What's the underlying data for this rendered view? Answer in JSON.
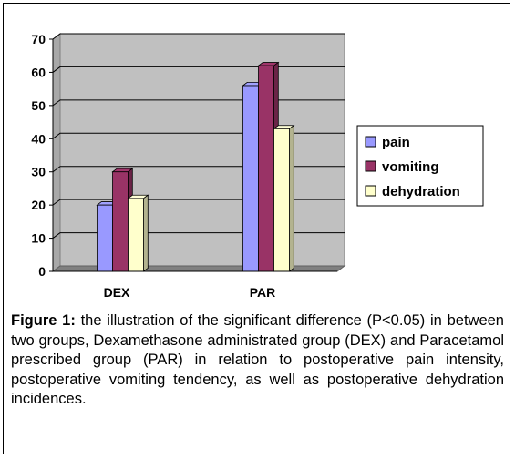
{
  "chart_data": {
    "type": "bar",
    "three_d": true,
    "categories": [
      "DEX",
      "PAR"
    ],
    "series": [
      {
        "name": "pain",
        "values": [
          20,
          56
        ],
        "color": "#9999FF"
      },
      {
        "name": "vomiting",
        "values": [
          30,
          62
        ],
        "color": "#993366"
      },
      {
        "name": "dehydration",
        "values": [
          22,
          43
        ],
        "color": "#FFFFCC"
      }
    ],
    "ylim": [
      0,
      70
    ],
    "yticks": [
      "0",
      "10",
      "20",
      "30",
      "40",
      "50",
      "60",
      "70"
    ],
    "grid": true,
    "plot_background": "#C0C0C0",
    "legend_position": "right"
  },
  "caption": {
    "label": "Figure 1:",
    "text": "the illustration of the significant difference (P<0.05) in between two groups, Dexamethasone administrated group (DEX) and Paracetamol prescribed group (PAR) in relation to postoperative pain intensity, postoperative vomiting tendency, as well as postoperative dehydration incidences."
  }
}
